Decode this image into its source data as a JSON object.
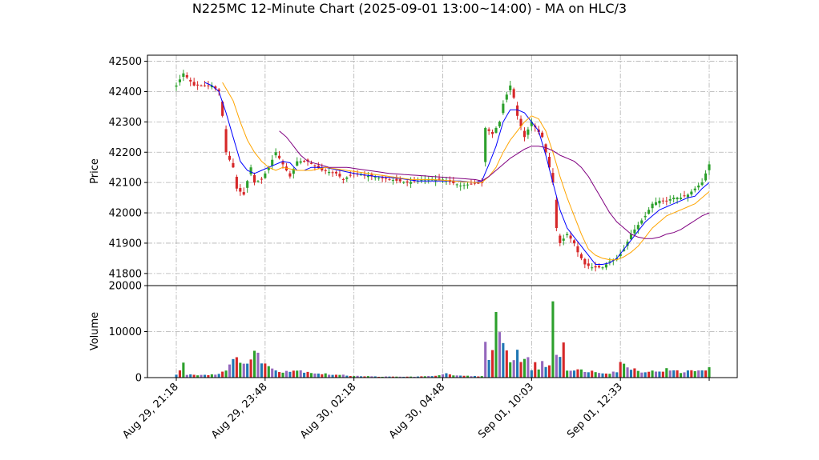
{
  "chart_data": {
    "type": "candlestick",
    "title": "N225MC 12-Minute Chart (2025-09-01 13:00~14:00) - MA on HLC/3",
    "panels": {
      "price": {
        "ylabel": "Price",
        "ylim": [
          41760,
          42520
        ],
        "yticks": [
          41800,
          41900,
          42000,
          42100,
          42200,
          42300,
          42400,
          42500
        ]
      },
      "volume": {
        "ylabel": "Volume",
        "ylim": [
          0,
          20000
        ],
        "yticks": [
          0,
          10000,
          20000
        ]
      }
    },
    "x_ticks": [
      {
        "label": "Aug 29, 21:18",
        "bar": 0
      },
      {
        "label": "Aug 29, 23:48",
        "bar": 25
      },
      {
        "label": "Aug 30, 02:18",
        "bar": 50
      },
      {
        "label": "Aug 30, 04:48",
        "bar": 75
      },
      {
        "label": "Sep 01, 10:03",
        "bar": 100
      },
      {
        "label": "Sep 01, 12:33",
        "bar": 125
      }
    ],
    "bar_count": 151,
    "colors": {
      "up": "#2ca02c",
      "down": "#d62728",
      "ma_fast": "#0000ff",
      "ma_mid": "#ffa500",
      "ma_slow": "#800080",
      "vol_up": "#1f77b4",
      "vol_down": "#d62728",
      "vol_alt": "#2ca02c",
      "vol_alt2": "#9467bd"
    },
    "price_path": [
      [
        0,
        42420
      ],
      [
        2,
        42460
      ],
      [
        5,
        42420
      ],
      [
        10,
        42420
      ],
      [
        12,
        42400
      ],
      [
        13,
        42320
      ],
      [
        14,
        42200
      ],
      [
        16,
        42150
      ],
      [
        17,
        42080
      ],
      [
        19,
        42060
      ],
      [
        21,
        42150
      ],
      [
        22,
        42100
      ],
      [
        24,
        42110
      ],
      [
        26,
        42150
      ],
      [
        28,
        42200
      ],
      [
        30,
        42160
      ],
      [
        32,
        42120
      ],
      [
        34,
        42170
      ],
      [
        37,
        42170
      ],
      [
        41,
        42140
      ],
      [
        45,
        42130
      ],
      [
        47,
        42110
      ],
      [
        50,
        42130
      ],
      [
        55,
        42120
      ],
      [
        60,
        42110
      ],
      [
        65,
        42100
      ],
      [
        70,
        42110
      ],
      [
        75,
        42110
      ],
      [
        80,
        42090
      ],
      [
        86,
        42100
      ],
      [
        87,
        42280
      ],
      [
        89,
        42260
      ],
      [
        91,
        42300
      ],
      [
        92,
        42360
      ],
      [
        94,
        42420
      ],
      [
        95,
        42380
      ],
      [
        96,
        42320
      ],
      [
        98,
        42250
      ],
      [
        100,
        42300
      ],
      [
        103,
        42250
      ],
      [
        105,
        42150
      ],
      [
        106,
        42100
      ],
      [
        107,
        41950
      ],
      [
        108,
        41900
      ],
      [
        110,
        41930
      ],
      [
        112,
        41900
      ],
      [
        113,
        41870
      ],
      [
        115,
        41830
      ],
      [
        117,
        41820
      ],
      [
        120,
        41820
      ],
      [
        122,
        41840
      ],
      [
        124,
        41850
      ],
      [
        126,
        41880
      ],
      [
        128,
        41930
      ],
      [
        130,
        41960
      ],
      [
        132,
        41990
      ],
      [
        134,
        42030
      ],
      [
        136,
        42040
      ],
      [
        138,
        42040
      ],
      [
        140,
        42050
      ],
      [
        142,
        42050
      ],
      [
        144,
        42060
      ],
      [
        146,
        42080
      ],
      [
        148,
        42100
      ],
      [
        150,
        42160
      ]
    ],
    "ma_fast": [
      [
        8,
        42430
      ],
      [
        10,
        42420
      ],
      [
        12,
        42400
      ],
      [
        14,
        42330
      ],
      [
        16,
        42250
      ],
      [
        18,
        42170
      ],
      [
        20,
        42140
      ],
      [
        22,
        42130
      ],
      [
        24,
        42140
      ],
      [
        26,
        42150
      ],
      [
        28,
        42160
      ],
      [
        30,
        42170
      ],
      [
        32,
        42165
      ],
      [
        34,
        42140
      ],
      [
        36,
        42140
      ],
      [
        38,
        42150
      ],
      [
        42,
        42150
      ],
      [
        46,
        42140
      ],
      [
        50,
        42130
      ],
      [
        56,
        42120
      ],
      [
        62,
        42115
      ],
      [
        68,
        42105
      ],
      [
        74,
        42105
      ],
      [
        80,
        42105
      ],
      [
        84,
        42100
      ],
      [
        86,
        42105
      ],
      [
        88,
        42160
      ],
      [
        90,
        42220
      ],
      [
        92,
        42300
      ],
      [
        94,
        42340
      ],
      [
        96,
        42340
      ],
      [
        98,
        42330
      ],
      [
        100,
        42300
      ],
      [
        102,
        42270
      ],
      [
        104,
        42190
      ],
      [
        106,
        42100
      ],
      [
        108,
        42010
      ],
      [
        110,
        41950
      ],
      [
        112,
        41920
      ],
      [
        114,
        41890
      ],
      [
        116,
        41860
      ],
      [
        118,
        41830
      ],
      [
        120,
        41830
      ],
      [
        122,
        41835
      ],
      [
        124,
        41850
      ],
      [
        126,
        41880
      ],
      [
        128,
        41910
      ],
      [
        130,
        41940
      ],
      [
        132,
        41970
      ],
      [
        134,
        41990
      ],
      [
        136,
        42010
      ],
      [
        138,
        42020
      ],
      [
        140,
        42030
      ],
      [
        142,
        42040
      ],
      [
        144,
        42050
      ],
      [
        146,
        42055
      ],
      [
        148,
        42080
      ],
      [
        150,
        42100
      ]
    ],
    "ma_mid": [
      [
        13,
        42430
      ],
      [
        14,
        42410
      ],
      [
        16,
        42370
      ],
      [
        18,
        42300
      ],
      [
        20,
        42240
      ],
      [
        22,
        42200
      ],
      [
        24,
        42170
      ],
      [
        26,
        42150
      ],
      [
        28,
        42140
      ],
      [
        30,
        42150
      ],
      [
        32,
        42145
      ],
      [
        34,
        42140
      ],
      [
        38,
        42140
      ],
      [
        42,
        42150
      ],
      [
        48,
        42140
      ],
      [
        54,
        42130
      ],
      [
        60,
        42120
      ],
      [
        66,
        42110
      ],
      [
        72,
        42110
      ],
      [
        78,
        42105
      ],
      [
        84,
        42100
      ],
      [
        86,
        42100
      ],
      [
        88,
        42120
      ],
      [
        90,
        42150
      ],
      [
        92,
        42200
      ],
      [
        94,
        42240
      ],
      [
        96,
        42270
      ],
      [
        98,
        42300
      ],
      [
        100,
        42320
      ],
      [
        102,
        42310
      ],
      [
        104,
        42270
      ],
      [
        106,
        42200
      ],
      [
        108,
        42120
      ],
      [
        110,
        42050
      ],
      [
        112,
        41990
      ],
      [
        114,
        41930
      ],
      [
        116,
        41880
      ],
      [
        118,
        41860
      ],
      [
        120,
        41850
      ],
      [
        122,
        41845
      ],
      [
        124,
        41845
      ],
      [
        126,
        41855
      ],
      [
        128,
        41870
      ],
      [
        130,
        41890
      ],
      [
        132,
        41920
      ],
      [
        134,
        41950
      ],
      [
        136,
        41970
      ],
      [
        138,
        41990
      ],
      [
        140,
        42000
      ],
      [
        142,
        42010
      ],
      [
        144,
        42020
      ],
      [
        146,
        42030
      ],
      [
        148,
        42050
      ],
      [
        150,
        42070
      ]
    ],
    "ma_slow": [
      [
        29,
        42270
      ],
      [
        31,
        42250
      ],
      [
        33,
        42220
      ],
      [
        35,
        42190
      ],
      [
        37,
        42170
      ],
      [
        40,
        42160
      ],
      [
        43,
        42150
      ],
      [
        48,
        42150
      ],
      [
        54,
        42140
      ],
      [
        60,
        42130
      ],
      [
        66,
        42125
      ],
      [
        72,
        42120
      ],
      [
        78,
        42115
      ],
      [
        84,
        42110
      ],
      [
        86,
        42105
      ],
      [
        88,
        42120
      ],
      [
        90,
        42140
      ],
      [
        92,
        42160
      ],
      [
        94,
        42180
      ],
      [
        96,
        42195
      ],
      [
        98,
        42210
      ],
      [
        100,
        42220
      ],
      [
        102,
        42220
      ],
      [
        104,
        42215
      ],
      [
        106,
        42205
      ],
      [
        108,
        42190
      ],
      [
        110,
        42180
      ],
      [
        112,
        42170
      ],
      [
        114,
        42150
      ],
      [
        116,
        42120
      ],
      [
        118,
        42080
      ],
      [
        120,
        42040
      ],
      [
        122,
        42000
      ],
      [
        124,
        41970
      ],
      [
        126,
        41950
      ],
      [
        128,
        41930
      ],
      [
        130,
        41920
      ],
      [
        132,
        41915
      ],
      [
        134,
        41915
      ],
      [
        136,
        41920
      ],
      [
        138,
        41930
      ],
      [
        140,
        41935
      ],
      [
        142,
        41945
      ],
      [
        144,
        41960
      ],
      [
        146,
        41975
      ],
      [
        148,
        41990
      ],
      [
        150,
        42000
      ]
    ],
    "volume_path": [
      [
        0,
        600
      ],
      [
        2,
        2800
      ],
      [
        3,
        700
      ],
      [
        8,
        600
      ],
      [
        12,
        800
      ],
      [
        14,
        2000
      ],
      [
        16,
        3300
      ],
      [
        18,
        4200
      ],
      [
        20,
        3000
      ],
      [
        22,
        5200
      ],
      [
        24,
        4000
      ],
      [
        26,
        2200
      ],
      [
        28,
        1700
      ],
      [
        30,
        1400
      ],
      [
        33,
        1600
      ],
      [
        36,
        1400
      ],
      [
        40,
        900
      ],
      [
        45,
        600
      ],
      [
        50,
        400
      ],
      [
        55,
        250
      ],
      [
        60,
        200
      ],
      [
        65,
        200
      ],
      [
        70,
        250
      ],
      [
        75,
        600
      ],
      [
        76,
        1000
      ],
      [
        78,
        400
      ],
      [
        86,
        300
      ],
      [
        87,
        10300
      ],
      [
        88,
        3800
      ],
      [
        89,
        5000
      ],
      [
        90,
        12000
      ],
      [
        91,
        8500
      ],
      [
        92,
        7000
      ],
      [
        93,
        5200
      ],
      [
        94,
        4300
      ],
      [
        95,
        3500
      ],
      [
        96,
        5700
      ],
      [
        97,
        3900
      ],
      [
        98,
        4400
      ],
      [
        99,
        4300
      ],
      [
        100,
        1800
      ],
      [
        101,
        2700
      ],
      [
        102,
        2200
      ],
      [
        103,
        3700
      ],
      [
        104,
        2000
      ],
      [
        105,
        2800
      ],
      [
        106,
        18300
      ],
      [
        107,
        6000
      ],
      [
        108,
        4800
      ],
      [
        109,
        7800
      ],
      [
        110,
        2000
      ],
      [
        112,
        1500
      ],
      [
        115,
        1600
      ],
      [
        118,
        1200
      ],
      [
        122,
        1100
      ],
      [
        124,
        1400
      ],
      [
        125,
        3000
      ],
      [
        127,
        2500
      ],
      [
        130,
        1500
      ],
      [
        134,
        1300
      ],
      [
        138,
        1700
      ],
      [
        142,
        1200
      ],
      [
        146,
        1500
      ],
      [
        148,
        1800
      ],
      [
        150,
        2200
      ]
    ]
  }
}
